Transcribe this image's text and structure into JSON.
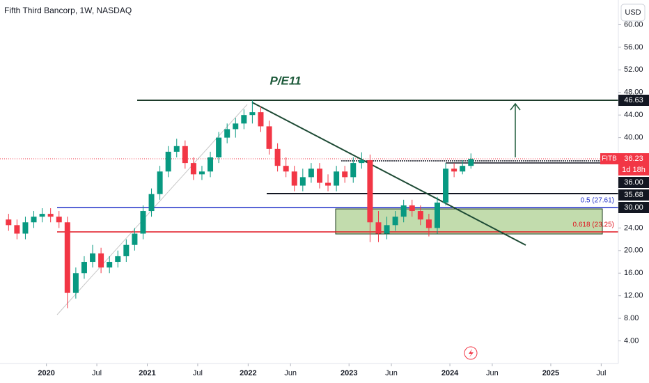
{
  "chart_data": {
    "type": "candlestick",
    "title": "Fifth Third Bancorp, 1W, NASDAQ",
    "currency": "USD",
    "x": [
      "2019-08",
      "2019-09",
      "2019-10",
      "2019-11",
      "2019-12",
      "2020-01",
      "2020-02",
      "2020-03",
      "2020-04",
      "2020-05",
      "2020-06",
      "2020-07",
      "2020-08",
      "2020-09",
      "2020-10",
      "2020-11",
      "2020-12",
      "2021-01",
      "2021-02",
      "2021-03",
      "2021-04",
      "2021-05",
      "2021-06",
      "2021-07",
      "2021-08",
      "2021-09",
      "2021-10",
      "2021-11",
      "2021-12",
      "2022-01",
      "2022-02",
      "2022-03",
      "2022-04",
      "2022-05",
      "2022-06",
      "2022-07",
      "2022-08",
      "2022-09",
      "2022-10",
      "2022-11",
      "2022-12",
      "2023-01",
      "2023-02",
      "2023-03",
      "2023-04",
      "2023-05",
      "2023-06",
      "2023-07",
      "2023-08",
      "2023-09",
      "2023-10",
      "2023-11",
      "2023-12",
      "2024-01",
      "2024-02",
      "2024-03"
    ],
    "open": [
      25.5,
      24.5,
      23,
      25,
      26,
      26.5,
      26,
      25,
      12.5,
      16,
      18,
      19.5,
      17,
      18,
      19,
      21,
      23,
      27,
      30,
      34,
      37.5,
      38.5,
      35.5,
      33.5,
      34,
      36.5,
      40,
      41.5,
      42.5,
      44,
      44.5,
      42,
      38,
      35,
      34,
      31.5,
      33,
      34.5,
      32,
      31.5,
      34,
      33,
      35.5,
      36,
      25,
      23,
      24.5,
      26,
      28,
      27,
      25.5,
      24,
      28.5,
      34.5,
      34,
      35
    ],
    "high": [
      26.5,
      25.5,
      26,
      27,
      27.5,
      27.5,
      27,
      26,
      17,
      19,
      21,
      20.5,
      19,
      20,
      22,
      24,
      28,
      31,
      35,
      38.5,
      39.8,
      39.5,
      36.5,
      35,
      37.5,
      41,
      42.5,
      43.5,
      45,
      46.63,
      45.5,
      43,
      39,
      36.5,
      35,
      34.5,
      35.5,
      35.5,
      33.5,
      35,
      35,
      36.5,
      37.4,
      37,
      27,
      26,
      27,
      29,
      29,
      28,
      26.5,
      29.5,
      35.5,
      35.5,
      36,
      37.2
    ],
    "low": [
      23.5,
      22,
      22,
      24,
      25,
      25,
      24,
      9.8,
      11.5,
      15,
      17,
      16,
      16,
      17,
      18,
      20,
      22,
      26,
      29,
      33,
      36.5,
      34.5,
      32.5,
      32.5,
      33,
      35.5,
      39,
      40,
      41.5,
      42.5,
      41,
      37,
      34,
      33,
      30.5,
      30.5,
      32,
      31,
      30.5,
      30.5,
      32,
      32,
      34.5,
      21.5,
      21.5,
      22,
      23.5,
      25,
      26,
      24.5,
      22.5,
      23,
      28,
      33,
      33.5,
      34.5
    ],
    "close": [
      24.5,
      23,
      25,
      26,
      26.5,
      26,
      25,
      12.5,
      16,
      18,
      19.5,
      17,
      18,
      19,
      21,
      23,
      27,
      30,
      34,
      37.5,
      38.5,
      35.5,
      33.5,
      34,
      36.5,
      40,
      41.5,
      42.5,
      44,
      44.5,
      42,
      38,
      35,
      34,
      31.5,
      33,
      34.5,
      32,
      31.5,
      34,
      33,
      35.5,
      36,
      25,
      23,
      24.5,
      26,
      28,
      27,
      25.5,
      24,
      28.5,
      34.5,
      34,
      35,
      36.23
    ],
    "up_color": "#089981",
    "down_color": "#f23645",
    "ylim": [
      0,
      64
    ],
    "yticks": [
      {
        "value": 4,
        "label": "4.00"
      },
      {
        "value": 8,
        "label": "8.00"
      },
      {
        "value": 12,
        "label": "12.00"
      },
      {
        "value": 16,
        "label": "16.00"
      },
      {
        "value": 20,
        "label": "20.00"
      },
      {
        "value": 24,
        "label": "24.00"
      },
      {
        "value": 40,
        "label": "40.00"
      },
      {
        "value": 44,
        "label": "44.00"
      },
      {
        "value": 48,
        "label": "48.00"
      },
      {
        "value": 52,
        "label": "52.00"
      },
      {
        "value": 56,
        "label": "56.00"
      },
      {
        "value": 60,
        "label": "60.00"
      }
    ],
    "xlim": [
      2019.54,
      2025.67
    ],
    "xticks": [
      2020,
      {
        "value": 2020.5,
        "label": "Jul"
      },
      2021,
      {
        "value": 2021.5,
        "label": "Jul"
      },
      2022,
      {
        "value": 2022.42,
        "label": "Jun"
      },
      2023,
      {
        "value": 2023.42,
        "label": "Jun"
      },
      2024,
      {
        "value": 2024.42,
        "label": "Jun"
      },
      2025,
      {
        "value": 2025.5,
        "label": "Jul"
      }
    ],
    "grid": false,
    "annotations": {
      "pattern": "P/E11",
      "fib_05": "0.5 (27.61)",
      "fib_0618": "0.618 (23.25)"
    },
    "price_labels": {
      "target": "46.63",
      "symbol": "FITB",
      "last": "36.23",
      "countdown": "1d 18h",
      "level_1": "36.00",
      "level_2": "35.68",
      "level_3": "30.00"
    }
  }
}
